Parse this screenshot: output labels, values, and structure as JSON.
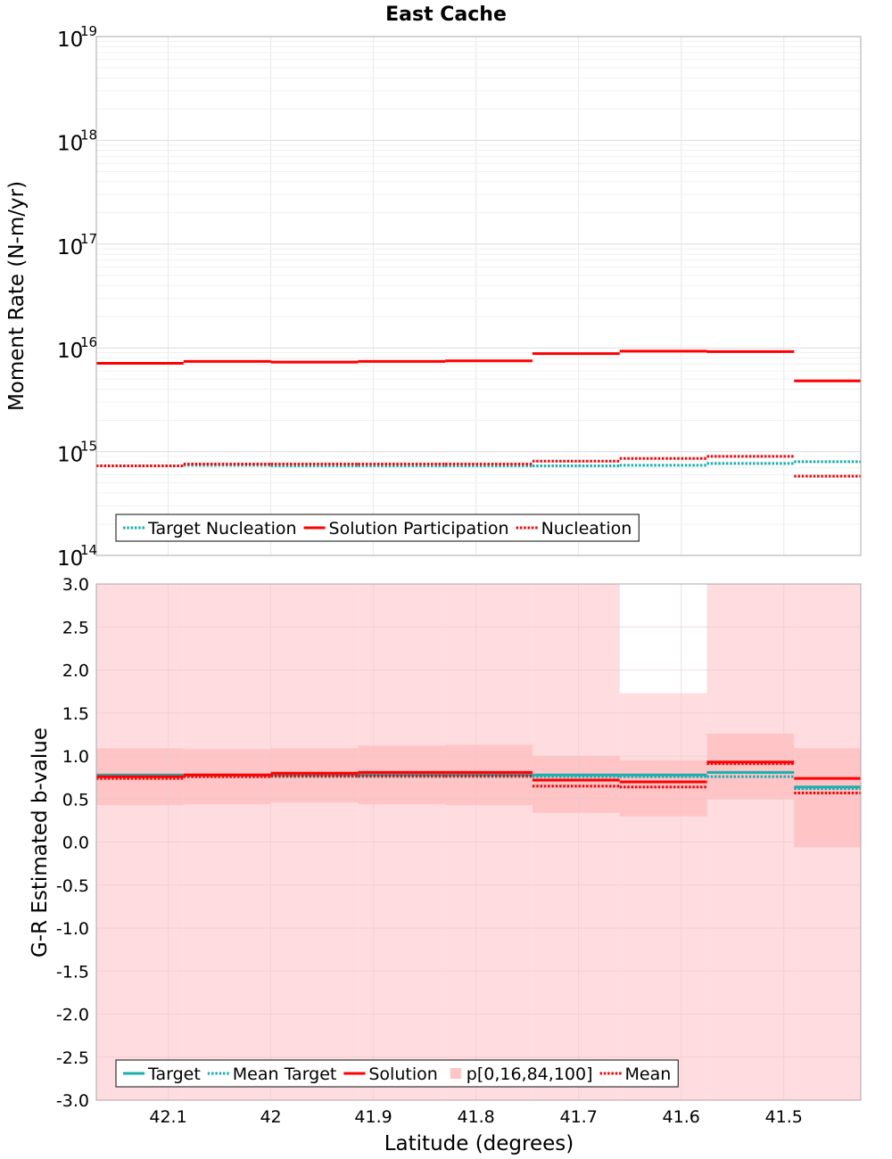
{
  "title": "East Cache",
  "chart_data": [
    {
      "type": "line",
      "step": true,
      "ylabel": "Moment Rate (N-m/yr)",
      "xlabel": "",
      "x_reversed": true,
      "xlim": [
        42.17,
        41.425
      ],
      "ylog": true,
      "ylim": [
        100000000000000.0,
        1e+19
      ],
      "y_exponents": [
        "14",
        "15",
        "16",
        "17",
        "18",
        "19"
      ],
      "y_base": "10",
      "grid": true,
      "legend_position": "bottom-left",
      "bin_edges": [
        42.17,
        42.085,
        42.0,
        41.915,
        41.83,
        41.745,
        41.66,
        41.575,
        41.49,
        41.425
      ],
      "series": [
        {
          "name": "Target Nucleation",
          "color": "#1aafaf",
          "style": "dotted",
          "values": [
            730000000000000.0,
            740000000000000.0,
            730000000000000.0,
            730000000000000.0,
            730000000000000.0,
            730000000000000.0,
            740000000000000.0,
            770000000000000.0,
            800000000000000.0
          ]
        },
        {
          "name": "Solution Participation",
          "color": "#ff0000",
          "style": "solid",
          "values": [
            7100000000000000.0,
            7400000000000000.0,
            7300000000000000.0,
            7400000000000000.0,
            7500000000000000.0,
            8800000000000000.0,
            9300000000000000.0,
            9200000000000000.0,
            4800000000000000.0
          ]
        },
        {
          "name": "Nucleation",
          "color": "#ff0000",
          "style": "dotted",
          "values": [
            730000000000000.0,
            760000000000000.0,
            760000000000000.0,
            760000000000000.0,
            760000000000000.0,
            810000000000000.0,
            860000000000000.0,
            900000000000000.0,
            580000000000000.0
          ]
        }
      ]
    },
    {
      "type": "line",
      "step": true,
      "ylabel": "G-R Estimated b-value",
      "xlabel": "Latitude (degrees)",
      "x_reversed": true,
      "xlim": [
        42.17,
        41.425
      ],
      "ylim": [
        -3.0,
        3.0
      ],
      "x_ticks": [
        "42.1",
        "42",
        "41.9",
        "41.8",
        "41.7",
        "41.6",
        "41.5"
      ],
      "x_tick_values": [
        42.1,
        42.0,
        41.9,
        41.8,
        41.7,
        41.6,
        41.5
      ],
      "y_ticks": [
        "3.0",
        "2.5",
        "2.0",
        "1.5",
        "1.0",
        "0.5",
        "0.0",
        "-0.5",
        "-1.0",
        "-1.5",
        "-2.0",
        "-2.5",
        "-3.0"
      ],
      "y_tick_values": [
        3.0,
        2.5,
        2.0,
        1.5,
        1.0,
        0.5,
        0.0,
        -0.5,
        -1.0,
        -1.5,
        -2.0,
        -2.5,
        -3.0
      ],
      "grid": true,
      "legend_position": "bottom-left",
      "bin_edges": [
        42.17,
        42.085,
        42.0,
        41.915,
        41.83,
        41.745,
        41.66,
        41.575,
        41.49,
        41.425
      ],
      "bands": {
        "name": "p[0,16,84,100]",
        "outer_color": "#ffdcdf",
        "inner_color": "#ffc4c6",
        "p0": [
          -3.0,
          -3.0,
          -3.0,
          -3.0,
          -3.0,
          -3.0,
          -3.0,
          -3.0,
          -3.0
        ],
        "p100": [
          3.0,
          3.0,
          3.0,
          3.0,
          3.0,
          3.0,
          1.73,
          3.0,
          3.0
        ],
        "p16": [
          0.43,
          0.44,
          0.46,
          0.44,
          0.43,
          0.34,
          0.3,
          0.5,
          -0.06
        ],
        "p84": [
          1.09,
          1.08,
          1.09,
          1.12,
          1.13,
          1.0,
          0.95,
          1.26,
          1.09
        ]
      },
      "series": [
        {
          "name": "Target",
          "color": "#1aafaf",
          "style": "solid",
          "values": [
            0.78,
            0.78,
            0.78,
            0.78,
            0.78,
            0.78,
            0.78,
            0.81,
            0.64
          ]
        },
        {
          "name": "Mean Target",
          "color": "#1aafaf",
          "style": "dotted",
          "values": [
            0.76,
            0.76,
            0.76,
            0.76,
            0.76,
            0.76,
            0.76,
            0.76,
            0.62
          ]
        },
        {
          "name": "Solution",
          "color": "#ff0000",
          "style": "solid",
          "values": [
            0.76,
            0.78,
            0.8,
            0.81,
            0.81,
            0.72,
            0.7,
            0.93,
            0.74
          ]
        },
        {
          "name": "Mean",
          "color": "#ff0000",
          "style": "dotted",
          "values": [
            0.74,
            0.76,
            0.77,
            0.77,
            0.77,
            0.65,
            0.64,
            0.91,
            0.57
          ]
        }
      ],
      "legend_order": [
        "Target",
        "Mean Target",
        "Solution",
        "p[0,16,84,100]",
        "Mean"
      ]
    }
  ]
}
